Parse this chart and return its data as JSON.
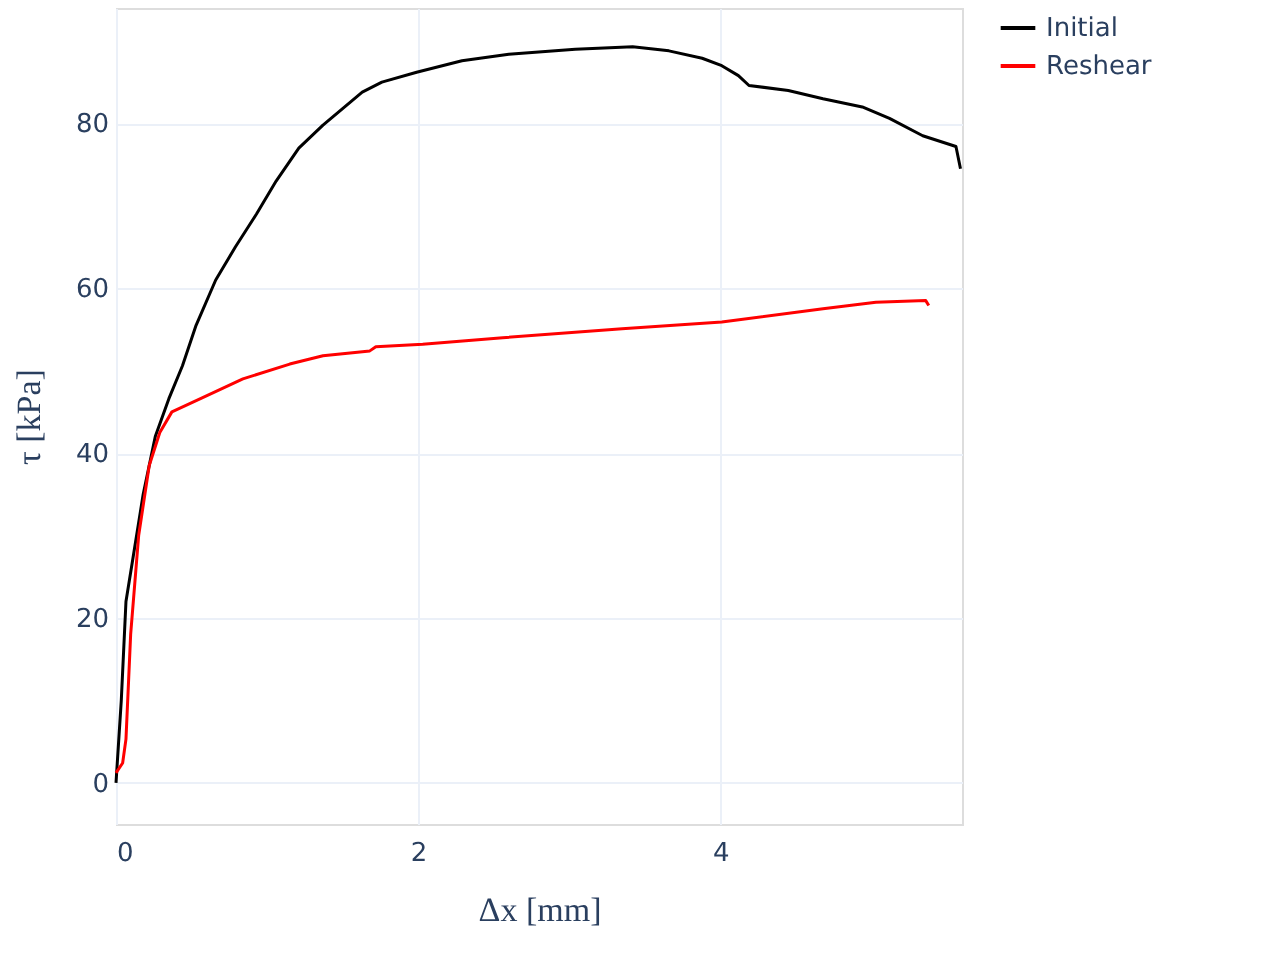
{
  "chart_data": {
    "type": "line",
    "xlabel": "Δx [mm]",
    "ylabel": "τ [kPa]",
    "xlim": [
      0,
      5.6
    ],
    "ylim": [
      -5,
      94
    ],
    "xticks": [
      0,
      2,
      4
    ],
    "yticks": [
      0,
      20,
      40,
      60,
      80
    ],
    "grid": true,
    "legend": "top right",
    "marker": "none",
    "line_style": "solid",
    "series": [
      {
        "name": "Initial",
        "color": "#000000",
        "x": [
          0,
          0.035,
          0.066,
          0.11,
          0.18,
          0.26,
          0.35,
          0.44,
          0.53,
          0.66,
          0.79,
          0.93,
          1.06,
          1.21,
          1.37,
          1.5,
          1.63,
          1.76,
          1.99,
          2.29,
          2.6,
          3.04,
          3.42,
          3.66,
          3.88,
          4.01,
          4.12,
          4.19,
          4.45,
          4.68,
          4.94,
          5.12,
          5.34,
          5.56,
          5.59
        ],
        "values": [
          0,
          10,
          22,
          27,
          35,
          42,
          46.6,
          50.6,
          55.5,
          61,
          65,
          69,
          73,
          77,
          79.8,
          81.8,
          83.8,
          85,
          86.2,
          87.6,
          88.4,
          89,
          89.3,
          88.8,
          87.9,
          87,
          85.8,
          84.6,
          84,
          83,
          82,
          80.6,
          78.5,
          77.2,
          74.5
        ]
      },
      {
        "name": "Reshear",
        "color": "#ff0000",
        "x": [
          0,
          0.044,
          0.066,
          0.097,
          0.15,
          0.22,
          0.29,
          0.37,
          0.57,
          0.84,
          1.15,
          1.37,
          1.68,
          1.72,
          2.03,
          2.56,
          3.35,
          4.01,
          4.68,
          5.03,
          5.36,
          5.38
        ],
        "values": [
          1.2,
          2.4,
          5.3,
          18,
          30,
          38.5,
          42.5,
          45,
          46.7,
          49,
          50.8,
          51.8,
          52.4,
          52.9,
          53.2,
          54,
          55.1,
          55.9,
          57.5,
          58.3,
          58.5,
          57.9
        ]
      }
    ]
  }
}
